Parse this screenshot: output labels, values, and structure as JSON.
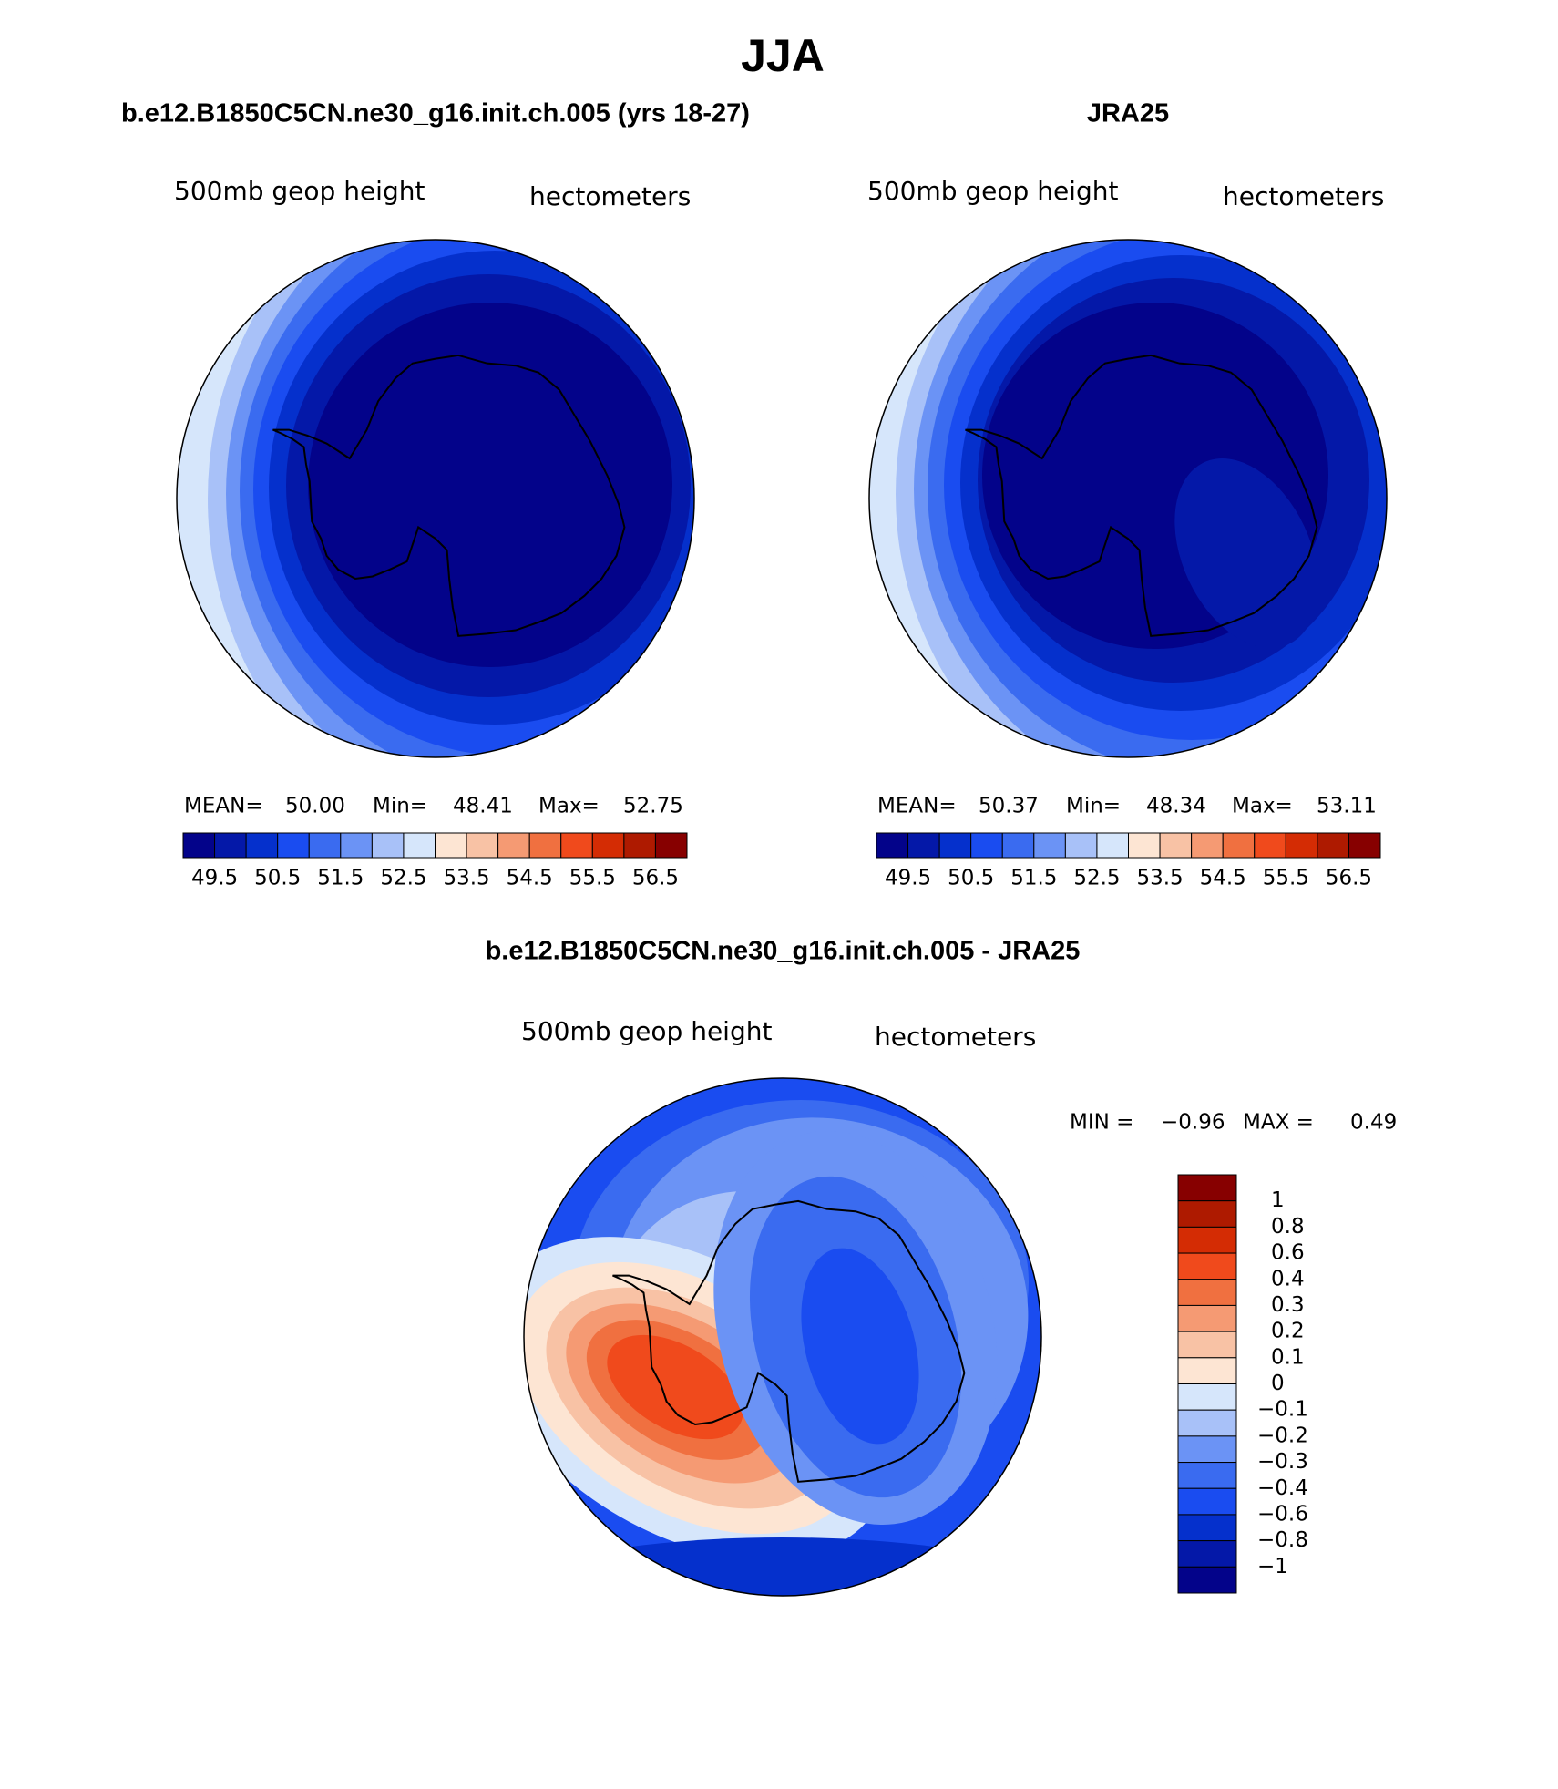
{
  "header": {
    "title": "JJA"
  },
  "panels": [
    {
      "title": "b.e12.B1850C5CN.ne30_g16.init.ch.005 (yrs 18-27)",
      "field": "500mb geop height",
      "units": "hectometers",
      "stats": [
        "MEAN=",
        "50.00",
        "Min=",
        "48.41",
        "Max=",
        "52.75"
      ],
      "colorbar": {
        "labels": [
          "49.5",
          "50.5",
          "51.5",
          "52.5",
          "53.5",
          "54.5",
          "55.5",
          "56.5"
        ],
        "colors": [
          "#03038a",
          "#0418a8",
          "#0530cc",
          "#1a4cf0",
          "#3a6bf0",
          "#6b93f5",
          "#a8c1f8",
          "#d6e6fb",
          "#fde5d3",
          "#f8c2a5",
          "#f59a73",
          "#f07040",
          "#f04a1c",
          "#d42c04",
          "#ae1a00",
          "#870000"
        ]
      }
    },
    {
      "title": "JRA25",
      "field": "500mb geop height",
      "units": "hectometers",
      "stats": [
        "MEAN=",
        "50.37",
        "Min=",
        "48.34",
        "Max=",
        "53.11"
      ],
      "colorbar": {
        "labels": [
          "49.5",
          "50.5",
          "51.5",
          "52.5",
          "53.5",
          "54.5",
          "55.5",
          "56.5"
        ],
        "colors": [
          "#03038a",
          "#0418a8",
          "#0530cc",
          "#1a4cf0",
          "#3a6bf0",
          "#6b93f5",
          "#a8c1f8",
          "#d6e6fb",
          "#fde5d3",
          "#f8c2a5",
          "#f59a73",
          "#f07040",
          "#f04a1c",
          "#d42c04",
          "#ae1a00",
          "#870000"
        ]
      }
    },
    {
      "title": "b.e12.B1850C5CN.ne30_g16.init.ch.005 - JRA25",
      "field": "500mb geop height",
      "units": "hectometers",
      "stats": [
        "MIN =",
        "−0.96",
        "MAX =",
        "0.49"
      ],
      "colorbar": {
        "labels": [
          "1",
          "0.8",
          "0.6",
          "0.4",
          "0.3",
          "0.2",
          "0.1",
          "0",
          "−0.1",
          "−0.2",
          "−0.3",
          "−0.4",
          "−0.6",
          "−0.8",
          "−1"
        ],
        "colors": [
          "#870000",
          "#ae1a00",
          "#d42c04",
          "#f04a1c",
          "#f07040",
          "#f59a73",
          "#f8c2a5",
          "#fde5d3",
          "#d6e6fb",
          "#a8c1f8",
          "#6b93f5",
          "#3a6bf0",
          "#1a4cf0",
          "#0530cc",
          "#0418a8",
          "#03038a"
        ]
      }
    }
  ]
}
